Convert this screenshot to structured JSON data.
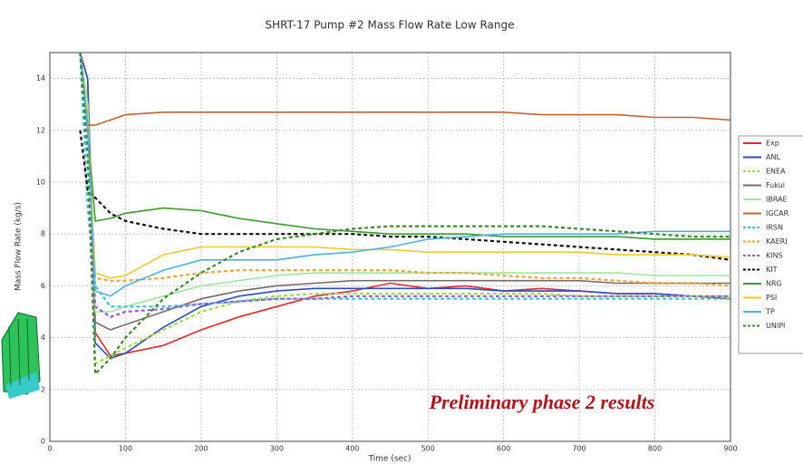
{
  "chart_data": {
    "type": "line",
    "title": "SHRT-17 Pump #2 Mass Flow Rate Low Range",
    "x_label": "Time (sec)",
    "y_label": "Mass Flow Rate (kg/s)",
    "annotation": "Preliminary phase 2 results",
    "x": [
      40,
      50,
      60,
      80,
      100,
      150,
      200,
      250,
      300,
      350,
      400,
      450,
      500,
      550,
      600,
      650,
      700,
      750,
      800,
      850,
      900
    ],
    "xlim": [
      0,
      900
    ],
    "xticks": [
      0,
      100,
      200,
      300,
      400,
      500,
      600,
      700,
      800,
      900
    ],
    "ylim": [
      0,
      15
    ],
    "yticks": [
      0,
      2,
      4,
      6,
      8,
      10,
      12,
      14
    ],
    "grid": true,
    "legend": "right",
    "series": [
      {
        "name": "Exp",
        "color": "#e8262a",
        "style": "solid",
        "values": [
          15,
          14,
          4.2,
          3.3,
          3.4,
          3.7,
          4.3,
          4.8,
          5.2,
          5.6,
          5.8,
          6.1,
          5.9,
          6.0,
          5.8,
          5.9,
          5.8,
          5.7,
          5.7,
          5.6,
          5.5
        ]
      },
      {
        "name": "ANL",
        "color": "#2b49c9",
        "style": "solid",
        "values": [
          15,
          14,
          3.8,
          3.2,
          3.4,
          4.4,
          5.2,
          5.6,
          5.8,
          5.9,
          5.9,
          5.9,
          5.9,
          5.9,
          5.8,
          5.8,
          5.8,
          5.7,
          5.7,
          5.6,
          5.6
        ]
      },
      {
        "name": "ENEA",
        "color": "#9be04a",
        "style": "dashed",
        "values": [
          15,
          13,
          3.0,
          3.3,
          3.6,
          4.3,
          5.0,
          5.4,
          5.6,
          5.7,
          5.7,
          5.7,
          5.7,
          5.7,
          5.7,
          5.7,
          5.6,
          5.6,
          5.6,
          5.6,
          5.6
        ]
      },
      {
        "name": "Fukui",
        "color": "#7a6a6a",
        "style": "solid",
        "values": [
          15,
          13,
          4.6,
          4.3,
          4.5,
          5.0,
          5.5,
          5.8,
          6.0,
          6.1,
          6.2,
          6.2,
          6.2,
          6.2,
          6.2,
          6.2,
          6.2,
          6.1,
          6.1,
          6.1,
          6.1
        ]
      },
      {
        "name": "IBRAE",
        "color": "#9ee89a",
        "style": "solid",
        "values": [
          15,
          13,
          5.0,
          5.0,
          5.2,
          5.6,
          6.0,
          6.2,
          6.4,
          6.5,
          6.5,
          6.5,
          6.5,
          6.5,
          6.5,
          6.5,
          6.5,
          6.5,
          6.4,
          6.4,
          6.4
        ]
      },
      {
        "name": "IGCAR",
        "color": "#c8622e",
        "style": "solid",
        "values": [
          15,
          12.2,
          12.2,
          12.4,
          12.6,
          12.7,
          12.7,
          12.7,
          12.7,
          12.7,
          12.7,
          12.7,
          12.7,
          12.7,
          12.7,
          12.6,
          12.6,
          12.6,
          12.5,
          12.5,
          12.4
        ]
      },
      {
        "name": "IRSN",
        "color": "#35c7d8",
        "style": "dashed",
        "values": [
          15,
          9,
          6.0,
          5.2,
          5.2,
          5.2,
          5.3,
          5.4,
          5.5,
          5.5,
          5.5,
          5.5,
          5.5,
          5.5,
          5.5,
          5.5,
          5.5,
          5.5,
          5.5,
          5.5,
          5.5
        ]
      },
      {
        "name": "KAERI",
        "color": "#f2a23a",
        "style": "dashed",
        "values": [
          15,
          12,
          6.3,
          6.2,
          6.2,
          6.3,
          6.5,
          6.6,
          6.6,
          6.6,
          6.6,
          6.6,
          6.5,
          6.5,
          6.4,
          6.3,
          6.3,
          6.2,
          6.1,
          6.1,
          6.0
        ]
      },
      {
        "name": "KINS",
        "color": "#9a5adc",
        "style": "dashed",
        "values": [
          15,
          12,
          5.2,
          4.8,
          5.0,
          5.1,
          5.3,
          5.4,
          5.5,
          5.5,
          5.6,
          5.6,
          5.6,
          5.6,
          5.6,
          5.6,
          5.6,
          5.6,
          5.6,
          5.6,
          5.6
        ]
      },
      {
        "name": "KIT",
        "color": "#111111",
        "style": "dashed",
        "values": [
          12,
          9.7,
          9.4,
          8.8,
          8.5,
          8.2,
          8.0,
          8.0,
          8.0,
          8.0,
          8.0,
          7.9,
          7.9,
          7.8,
          7.7,
          7.6,
          7.5,
          7.4,
          7.3,
          7.2,
          7.0
        ]
      },
      {
        "name": "NRG",
        "color": "#3a9a2a",
        "style": "solid",
        "values": [
          15,
          12,
          8.5,
          8.6,
          8.8,
          9.0,
          8.9,
          8.6,
          8.4,
          8.2,
          8.1,
          8.0,
          8.0,
          8.0,
          7.9,
          7.9,
          7.9,
          7.9,
          7.8,
          7.8,
          7.8
        ]
      },
      {
        "name": "PSI",
        "color": "#f5c829",
        "style": "solid",
        "values": [
          15,
          12,
          6.5,
          6.3,
          6.4,
          7.2,
          7.5,
          7.5,
          7.5,
          7.5,
          7.4,
          7.4,
          7.3,
          7.3,
          7.3,
          7.3,
          7.3,
          7.2,
          7.2,
          7.2,
          7.1
        ]
      },
      {
        "name": "TP",
        "color": "#4ab0e8",
        "style": "solid",
        "values": [
          15,
          12,
          5.8,
          5.6,
          6.0,
          6.6,
          7.0,
          7.0,
          7.0,
          7.2,
          7.3,
          7.5,
          7.8,
          7.9,
          8.0,
          8.0,
          8.0,
          8.0,
          8.1,
          8.1,
          8.1
        ]
      },
      {
        "name": "UNIPI",
        "color": "#3b8a2a",
        "style": "dashed",
        "values": [
          15,
          11,
          2.6,
          3.2,
          4.0,
          5.5,
          6.5,
          7.3,
          7.8,
          8.0,
          8.2,
          8.3,
          8.3,
          8.3,
          8.3,
          8.3,
          8.2,
          8.1,
          8.0,
          7.9,
          7.9
        ]
      }
    ]
  }
}
